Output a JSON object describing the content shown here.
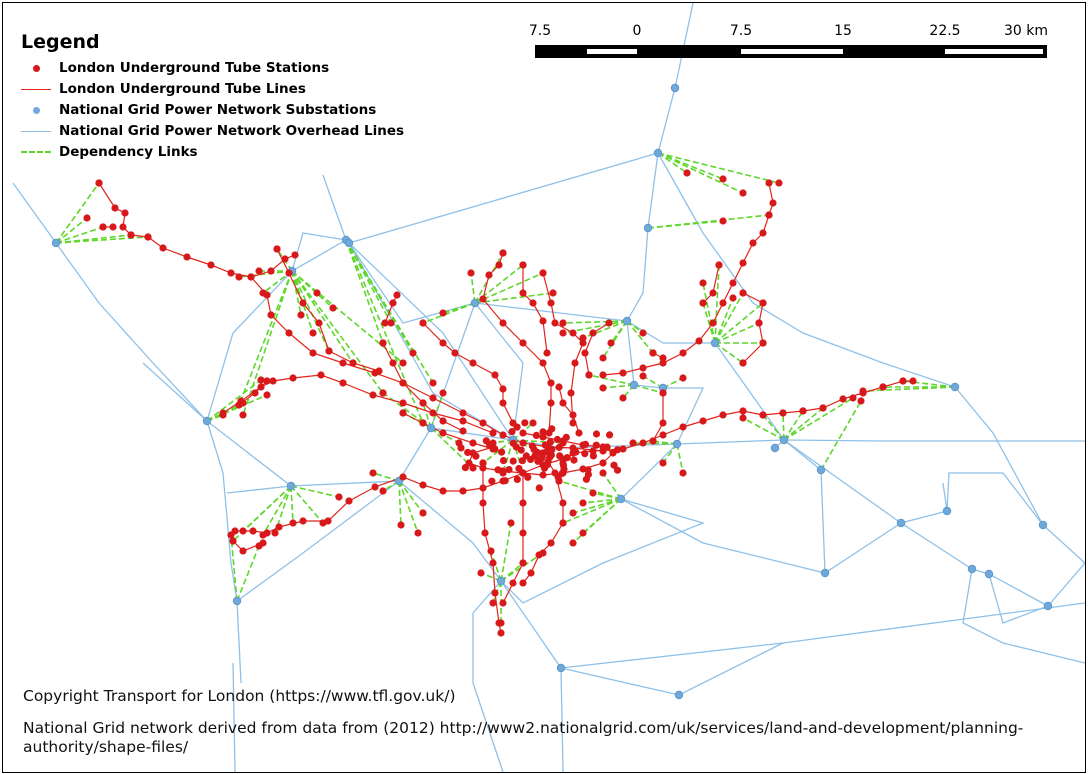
{
  "legend": {
    "title": "Legend",
    "items": [
      {
        "label": "London Underground Tube Stations",
        "symbol": "red-point"
      },
      {
        "label": "London Underground Tube Lines",
        "symbol": "red-line"
      },
      {
        "label": "National Grid Power Network Substations",
        "symbol": "blue-point"
      },
      {
        "label": "National Grid Power Network Overhead Lines",
        "symbol": "blue-line"
      },
      {
        "label": "Dependency Links",
        "symbol": "green-dashed-line"
      }
    ]
  },
  "scale": {
    "labels": [
      "7.5",
      "0",
      "7.5",
      "15",
      "22.5",
      "30 km"
    ]
  },
  "credits": {
    "tfl": "Copyright Transport for London (https://www.tfl.gov.uk/)",
    "grid_line1": "National Grid network derived from data from (2012) http://www2.nationalgrid.com/uk/services/land-and-development/planning-",
    "grid_line2": "authority/shape-files/"
  },
  "colors": {
    "tube_station": "#d7191c",
    "tube_line": "#e2231a",
    "substation": "#6fa9dc",
    "overhead_line": "#8fc1e8",
    "dependency": "#5ed62a"
  }
}
